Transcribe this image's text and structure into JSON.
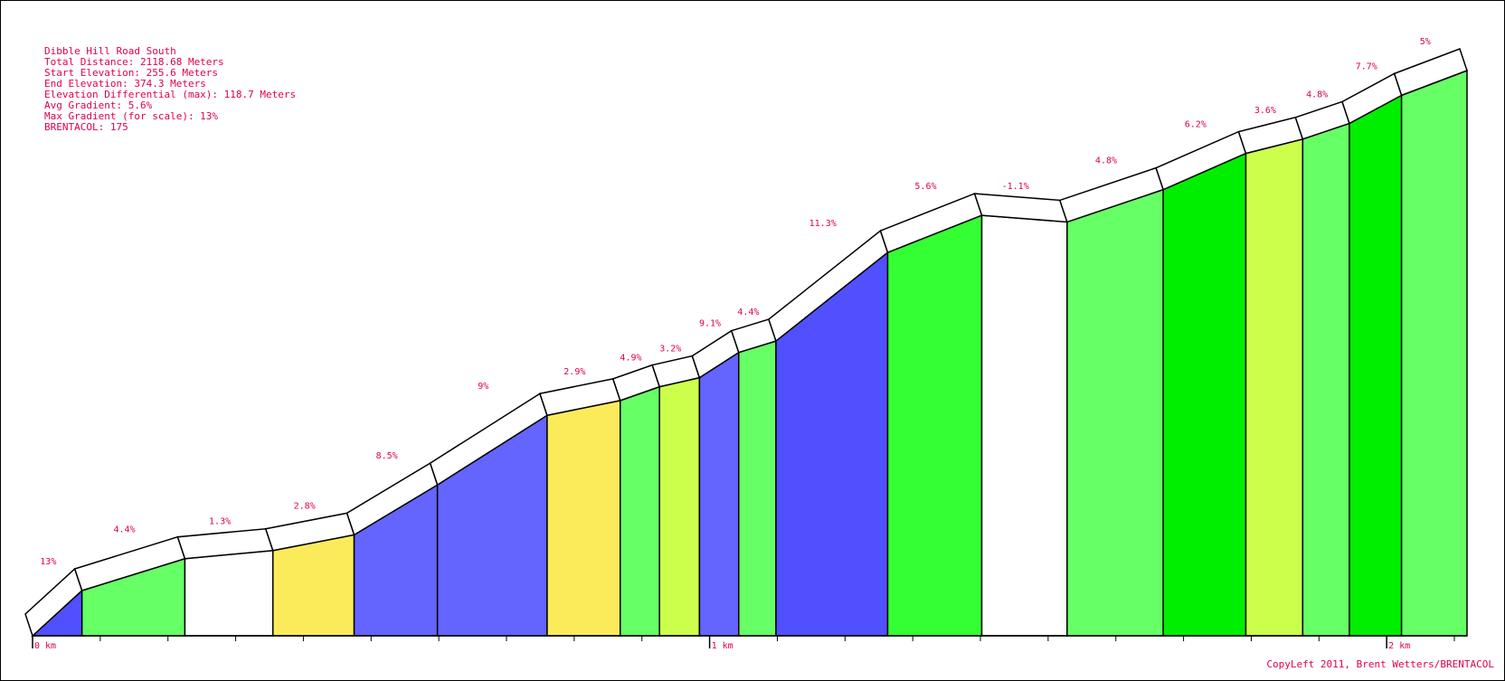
{
  "info_lines": [
    "Dibble Hill Road South",
    "Total Distance: 2118.68 Meters",
    "Start Elevation: 255.6 Meters",
    "End Elevation: 374.3 Meters",
    "Elevation Differential (max): 118.7 Meters",
    "Avg Gradient: 5.6%",
    "Max Gradient (for scale): 13%",
    "BRENTACOL: 175"
  ],
  "copyright": "CopyLeft 2011, Brent Wetters/BRENTACOL",
  "colors": {
    "text": "#e0004a",
    "outline": "#000000",
    "gradient_fill": {
      "13%": "#5050ff",
      "11.3%": "#5050ff",
      "9.1%": "#6464ff",
      "9%": "#6464ff",
      "8.5%": "#6464ff",
      "7.7%": "#00ee00",
      "6.2%": "#00ee00",
      "5.6%": "#33ff33",
      "5%": "#66ff66",
      "4.9%": "#66ff66",
      "4.8%": "#66ff66",
      "4.4%": "#66ff66",
      "3.6%": "#ccff4c",
      "3.2%": "#ccff4c",
      "2.9%": "#fbeb5b",
      "2.8%": "#fbeb5b",
      "1.3%": "#ffffff",
      "-1.1%": "#ffffff"
    }
  },
  "chart_data": {
    "type": "area",
    "title": "Dibble Hill Road South",
    "xlabel": "",
    "ylabel": "",
    "x_unit": "m",
    "xlim": [
      0,
      2118.68
    ],
    "ylim": [
      255.6,
      374.3
    ],
    "x_ticks": [
      {
        "value": 0,
        "label": "0 km"
      },
      {
        "value": 1000,
        "label": "1 km"
      },
      {
        "value": 2000,
        "label": "2 km"
      }
    ],
    "grid": false,
    "segments": [
      {
        "start_m": 0,
        "end_m": 73,
        "start_ele": 255.6,
        "end_ele": 265.1,
        "gradient_label": "13%"
      },
      {
        "start_m": 73,
        "end_m": 225,
        "start_ele": 265.1,
        "end_ele": 271.8,
        "gradient_label": "4.4%"
      },
      {
        "start_m": 225,
        "end_m": 355,
        "start_ele": 271.8,
        "end_ele": 273.5,
        "gradient_label": "1.3%"
      },
      {
        "start_m": 355,
        "end_m": 475,
        "start_ele": 273.5,
        "end_ele": 276.8,
        "gradient_label": "2.8%"
      },
      {
        "start_m": 475,
        "end_m": 598,
        "start_ele": 276.8,
        "end_ele": 287.3,
        "gradient_label": "8.5%"
      },
      {
        "start_m": 598,
        "end_m": 760,
        "start_ele": 287.3,
        "end_ele": 301.9,
        "gradient_label": "9%"
      },
      {
        "start_m": 760,
        "end_m": 868,
        "start_ele": 301.9,
        "end_ele": 305.0,
        "gradient_label": "2.9%"
      },
      {
        "start_m": 868,
        "end_m": 926,
        "start_ele": 305.0,
        "end_ele": 307.9,
        "gradient_label": "4.9%"
      },
      {
        "start_m": 926,
        "end_m": 985,
        "start_ele": 307.9,
        "end_ele": 309.8,
        "gradient_label": "3.2%"
      },
      {
        "start_m": 985,
        "end_m": 1043,
        "start_ele": 309.8,
        "end_ele": 315.1,
        "gradient_label": "9.1%"
      },
      {
        "start_m": 1043,
        "end_m": 1098,
        "start_ele": 315.1,
        "end_ele": 317.5,
        "gradient_label": "4.4%"
      },
      {
        "start_m": 1098,
        "end_m": 1263,
        "start_ele": 317.5,
        "end_ele": 336.1,
        "gradient_label": "11.3%"
      },
      {
        "start_m": 1263,
        "end_m": 1402,
        "start_ele": 336.1,
        "end_ele": 343.9,
        "gradient_label": "5.6%"
      },
      {
        "start_m": 1402,
        "end_m": 1528,
        "start_ele": 343.9,
        "end_ele": 342.5,
        "gradient_label": "-1.1%"
      },
      {
        "start_m": 1528,
        "end_m": 1670,
        "start_ele": 342.5,
        "end_ele": 349.3,
        "gradient_label": "4.8%"
      },
      {
        "start_m": 1670,
        "end_m": 1792,
        "start_ele": 349.3,
        "end_ele": 356.9,
        "gradient_label": "6.2%"
      },
      {
        "start_m": 1792,
        "end_m": 1876,
        "start_ele": 356.9,
        "end_ele": 359.9,
        "gradient_label": "3.6%"
      },
      {
        "start_m": 1876,
        "end_m": 1945,
        "start_ele": 359.9,
        "end_ele": 363.2,
        "gradient_label": "4.8%"
      },
      {
        "start_m": 1945,
        "end_m": 2022,
        "start_ele": 363.2,
        "end_ele": 369.1,
        "gradient_label": "7.7%"
      },
      {
        "start_m": 2022,
        "end_m": 2118.68,
        "start_ele": 369.1,
        "end_ele": 374.3,
        "gradient_label": "5%"
      }
    ]
  }
}
